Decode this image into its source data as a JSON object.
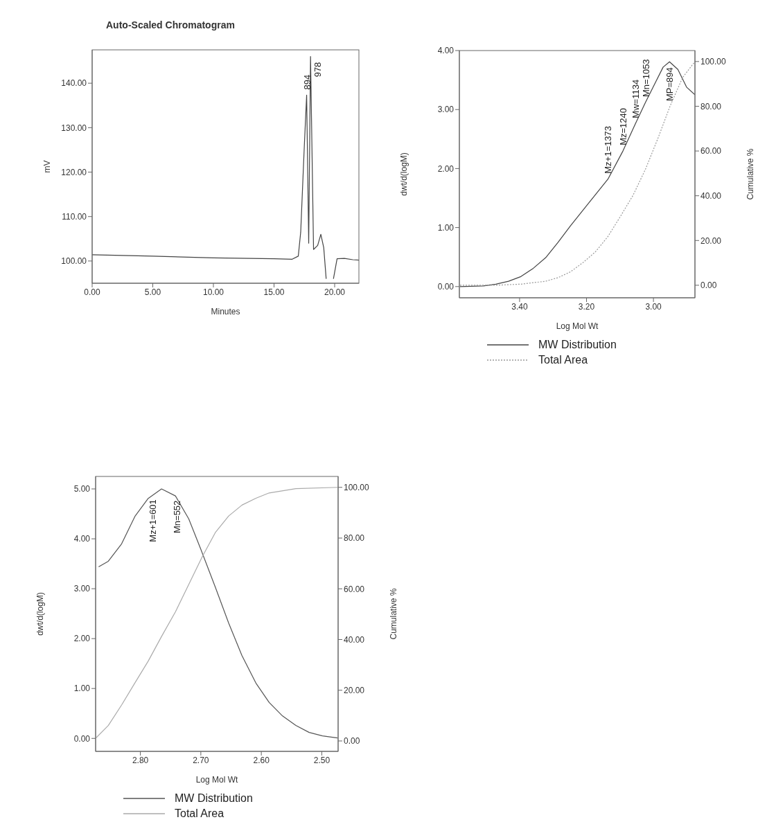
{
  "chart_data": [
    {
      "type": "line",
      "title": "Auto-Scaled Chromatogram",
      "xlabel": "Minutes",
      "ylabel": "mV",
      "marker": "none",
      "xlim": [
        0,
        22
      ],
      "ylim": [
        95,
        147.5
      ],
      "xticks": [
        {
          "value": 0,
          "label": "0.00"
        },
        {
          "value": 5,
          "label": "5.00"
        },
        {
          "value": 10,
          "label": "10.00"
        },
        {
          "value": 15,
          "label": "15.00"
        },
        {
          "value": 20,
          "label": "20.00"
        }
      ],
      "yticks": [
        {
          "value": 100,
          "label": "100.00"
        },
        {
          "value": 110,
          "label": "110.00"
        },
        {
          "value": 120,
          "label": "120.00"
        },
        {
          "value": 130,
          "label": "130.00"
        },
        {
          "value": 140,
          "label": "140.00"
        }
      ],
      "series": [
        {
          "color": "#444444",
          "line_style": "solid",
          "x": [
            0,
            5,
            10,
            15,
            16.5,
            17,
            17.2,
            17.5,
            17.69,
            17.86,
            18.01,
            18.26,
            18.6,
            18.86,
            19.1,
            19.3,
            19.6,
            19.9,
            20.2,
            20.8,
            21.5,
            22
          ],
          "values": [
            101.4,
            101.1,
            100.7,
            100.5,
            100.4,
            101.1,
            106.5,
            126,
            137.3,
            104,
            146,
            102.6,
            103.5,
            106,
            103,
            96,
            null,
            96,
            100.5,
            100.6,
            100.3,
            100.2
          ]
        }
      ],
      "annotations": [
        {
          "text": "894",
          "x": 17.69,
          "y": 137.3
        },
        {
          "text": "978",
          "x": 18.01,
          "y": 146
        }
      ]
    },
    {
      "type": "line",
      "xlabel": "Log Mol Wt",
      "ylabel": "dwt/d(logM)",
      "y2label": "Cumulative %",
      "marker": "none",
      "legend": "bottom",
      "xlim": [
        3.58,
        2.876
      ],
      "ylim": [
        -0.19,
        4
      ],
      "y2lim": [
        -5.6,
        104.9
      ],
      "xticks": [
        {
          "value": 3.4,
          "label": "3.40"
        },
        {
          "value": 3.2,
          "label": "3.20"
        },
        {
          "value": 3,
          "label": "3.00"
        }
      ],
      "yticks": [
        {
          "value": 0,
          "label": "0.00"
        },
        {
          "value": 1,
          "label": "1.00"
        },
        {
          "value": 2,
          "label": "2.00"
        },
        {
          "value": 3,
          "label": "3.00"
        },
        {
          "value": 4,
          "label": "4.00"
        }
      ],
      "y2ticks": [
        {
          "value": 0,
          "label": "0.00"
        },
        {
          "value": 20,
          "label": "20.00"
        },
        {
          "value": 40,
          "label": "40.00"
        },
        {
          "value": 60,
          "label": "60.00"
        },
        {
          "value": 80,
          "label": "80.00"
        },
        {
          "value": 100,
          "label": "100.00"
        }
      ],
      "series": [
        {
          "name": "MW Distribution",
          "color": "#444444",
          "line_style": "solid",
          "x": [
            3.578,
            3.508,
            3.471,
            3.433,
            3.396,
            3.359,
            3.322,
            3.285,
            3.248,
            3.2,
            3.136,
            3.091,
            3.054,
            3.024,
            2.994,
            2.971,
            2.952,
            2.927,
            2.901,
            2.876
          ],
          "values": [
            0,
            0.01,
            0.04,
            0.09,
            0.17,
            0.31,
            0.49,
            0.75,
            1.03,
            1.37,
            1.82,
            2.3,
            2.76,
            3.12,
            3.46,
            3.72,
            3.81,
            3.68,
            3.38,
            3.25
          ]
        },
        {
          "name": "Total Area",
          "color": "#999999",
          "line_style": "dotted",
          "axis": "y2",
          "x": [
            3.578,
            3.471,
            3.396,
            3.322,
            3.285,
            3.248,
            3.21,
            3.173,
            3.136,
            3.099,
            3.061,
            3.024,
            2.987,
            2.95,
            2.913,
            2.876
          ],
          "values": [
            0,
            0,
            0.5,
            1.8,
            3.4,
            6,
            10.2,
            15,
            21.8,
            30.7,
            40.2,
            51.8,
            65.5,
            80.2,
            92.8,
            100
          ]
        }
      ],
      "annotations": [
        {
          "text": "Mz+1=1373",
          "x": 3.136,
          "y": 1.82
        },
        {
          "text": "Mz=1240",
          "x": 3.091,
          "y": 2.3
        },
        {
          "text": "Mw=1134",
          "x": 3.054,
          "y": 2.76
        },
        {
          "text": "Mn=1053",
          "x": 3.024,
          "y": 3.12
        },
        {
          "text": "MP=894",
          "x": 2.952,
          "y": 3.81
        }
      ]
    },
    {
      "type": "line",
      "xlabel": "Log Mol Wt",
      "ylabel": "dwt/d(logM)",
      "y2label": "Cumulative %",
      "marker": "none",
      "legend": "bottom",
      "xlim": [
        2.874,
        2.473
      ],
      "ylim": [
        -0.26,
        5.25
      ],
      "y2lim": [
        -4.1,
        104.3
      ],
      "xticks": [
        {
          "value": 2.8,
          "label": "2.80"
        },
        {
          "value": 2.7,
          "label": "2.70"
        },
        {
          "value": 2.6,
          "label": "2.60"
        },
        {
          "value": 2.5,
          "label": "2.50"
        }
      ],
      "yticks": [
        {
          "value": 0,
          "label": "0.00"
        },
        {
          "value": 1,
          "label": "1.00"
        },
        {
          "value": 2,
          "label": "2.00"
        },
        {
          "value": 3,
          "label": "3.00"
        },
        {
          "value": 4,
          "label": "4.00"
        },
        {
          "value": 5,
          "label": "5.00"
        }
      ],
      "y2ticks": [
        {
          "value": 0,
          "label": "0.00"
        },
        {
          "value": 20,
          "label": "20.00"
        },
        {
          "value": 40,
          "label": "40.00"
        },
        {
          "value": 60,
          "label": "60.00"
        },
        {
          "value": 80,
          "label": "80.00"
        },
        {
          "value": 100,
          "label": "100.00"
        }
      ],
      "series": [
        {
          "name": "MW Distribution",
          "color": "#555555",
          "line_style": "solid",
          "x": [
            2.869,
            2.853,
            2.831,
            2.809,
            2.787,
            2.765,
            2.742,
            2.72,
            2.7,
            2.676,
            2.654,
            2.632,
            2.609,
            2.587,
            2.565,
            2.543,
            2.521,
            2.499,
            2.474
          ],
          "values": [
            3.44,
            3.55,
            3.9,
            4.45,
            4.81,
            5,
            4.86,
            4.4,
            3.79,
            3.03,
            2.31,
            1.66,
            1.11,
            0.72,
            0.45,
            0.26,
            0.12,
            0.05,
            0.01
          ]
        },
        {
          "name": "Total Area",
          "color": "#aaaaaa",
          "line_style": "solid",
          "axis": "y2",
          "x": [
            2.873,
            2.853,
            2.831,
            2.809,
            2.787,
            2.765,
            2.742,
            2.72,
            2.698,
            2.676,
            2.654,
            2.632,
            2.609,
            2.587,
            2.543,
            2.474
          ],
          "values": [
            1.3,
            6.1,
            14.2,
            22.9,
            31.5,
            41.2,
            50.9,
            61.7,
            72.5,
            82.2,
            88.7,
            93,
            95.7,
            97.8,
            99.5,
            100
          ]
        }
      ],
      "annotations": [
        {
          "text": "Mz+1=601",
          "x": 2.78,
          "y": 4.9
        },
        {
          "text": "Mn=552",
          "x": 2.74,
          "y": 4.88
        }
      ]
    }
  ]
}
